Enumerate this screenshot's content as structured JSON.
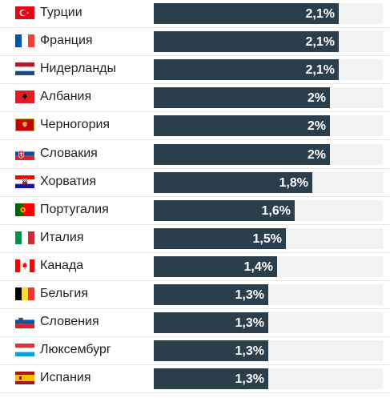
{
  "chart_data": {
    "type": "bar",
    "orientation": "horizontal",
    "categories": [
      "Турции",
      "Франция",
      "Нидерланды",
      "Албания",
      "Черногория",
      "Словакия",
      "Хорватия",
      "Португалия",
      "Италия",
      "Канада",
      "Бельгия",
      "Словения",
      "Люксембург",
      "Испания"
    ],
    "values": [
      2.1,
      2.1,
      2.1,
      2.0,
      2.0,
      2.0,
      1.8,
      1.6,
      1.5,
      1.4,
      1.3,
      1.3,
      1.3,
      1.3
    ],
    "value_labels": [
      "2,1%",
      "2,1%",
      "2,1%",
      "2%",
      "2%",
      "2%",
      "1,8%",
      "1,6%",
      "1,5%",
      "1,4%",
      "1,3%",
      "1,3%",
      "1,3%",
      "1,3%"
    ],
    "xlim": [
      0,
      2.6
    ],
    "bar_color": "#2b3e4c",
    "track_color": "#f2f2f2",
    "flag_icons": [
      "turkey-flag-icon",
      "france-flag-icon",
      "netherlands-flag-icon",
      "albania-flag-icon",
      "montenegro-flag-icon",
      "slovakia-flag-icon",
      "croatia-flag-icon",
      "portugal-flag-icon",
      "italy-flag-icon",
      "canada-flag-icon",
      "belgium-flag-icon",
      "slovenia-flag-icon",
      "luxembourg-flag-icon",
      "spain-flag-icon"
    ]
  }
}
